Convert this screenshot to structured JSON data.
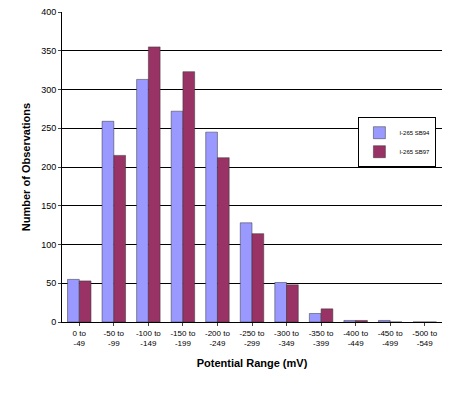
{
  "chart_data": {
    "type": "bar",
    "x_label": "Potential Range (mV)",
    "y_label": "Number of Observations",
    "categories": [
      "0 to -49",
      "-50 to -99",
      "-100 to -149",
      "-150 to -199",
      "-200 to -249",
      "-250 to -299",
      "-300 to -349",
      "-350 to -399",
      "-400 to -449",
      "-450 to -499",
      "-500 to -549"
    ],
    "series": [
      {
        "name": "I-265 SB94",
        "color": "#9999ff",
        "values": [
          55,
          259,
          313,
          272,
          245,
          128,
          51,
          11,
          2,
          2,
          0
        ]
      },
      {
        "name": "I-265 SB97",
        "color": "#993366",
        "values": [
          53,
          215,
          355,
          323,
          212,
          114,
          48,
          17,
          2,
          0,
          0
        ]
      }
    ],
    "ylim": [
      0,
      400
    ],
    "yticks": [
      0,
      50,
      100,
      150,
      200,
      250,
      300,
      350,
      400
    ],
    "grid": true,
    "legend": "right"
  }
}
